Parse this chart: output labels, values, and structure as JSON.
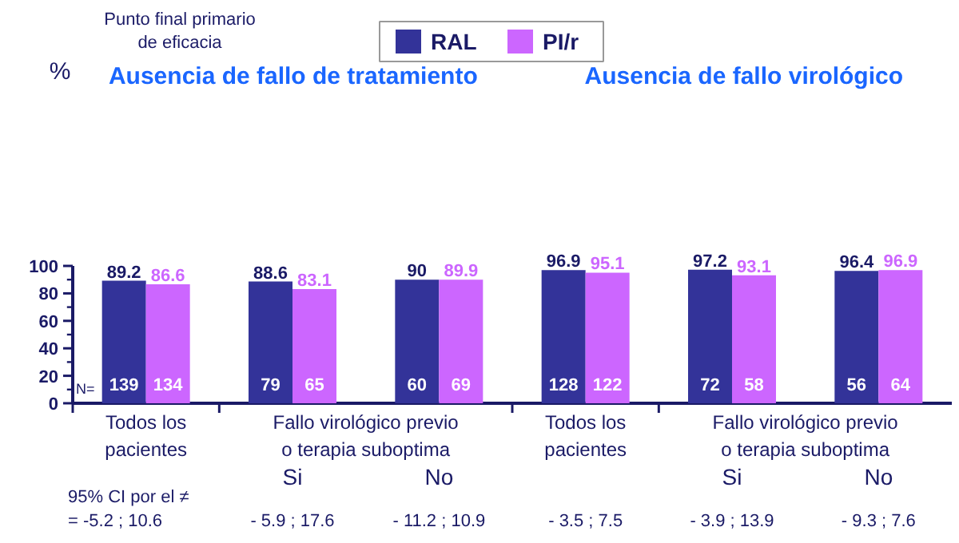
{
  "chart_data": {
    "type": "bar",
    "categories": [
      "Todos los\npacientes",
      "Si",
      "No",
      "Todos los\npacientes",
      "Si",
      "No"
    ],
    "series": [
      {
        "name": "RAL",
        "color": "#333399",
        "values": [
          89.2,
          88.6,
          90,
          96.9,
          97.2,
          96.4
        ]
      },
      {
        "name": "PI/r",
        "color": "#cc66ff",
        "values": [
          86.6,
          83.1,
          89.9,
          95.1,
          93.1,
          96.9
        ]
      }
    ],
    "ylim": [
      0,
      100
    ],
    "yticks": [
      0,
      20,
      40,
      60,
      80,
      100
    ],
    "data_labels": true,
    "legend": "top",
    "grid": false,
    "annotations": [
      "Punto final primario\nde eficacia",
      "Ausencia de fallo de  tratamiento",
      "Ausencia de fallo  virológico",
      "Fallo virológico previo\no terapia suboptima",
      "Fallo virológico previo\no terapia suboptima",
      "95% CI por el ≠",
      "= -5.2 ; 10.6",
      "- 5.9 ; 17.6",
      "- 11.2 ; 10.9",
      "- 3.5 ; 7.5",
      "- 3.9 ; 13.9",
      "- 9.3 ; 7.6",
      "N=",
      "139",
      "134",
      "79",
      "65",
      "60",
      "69",
      "128",
      "122",
      "72",
      "58",
      "56",
      "64",
      "%"
    ]
  }
}
